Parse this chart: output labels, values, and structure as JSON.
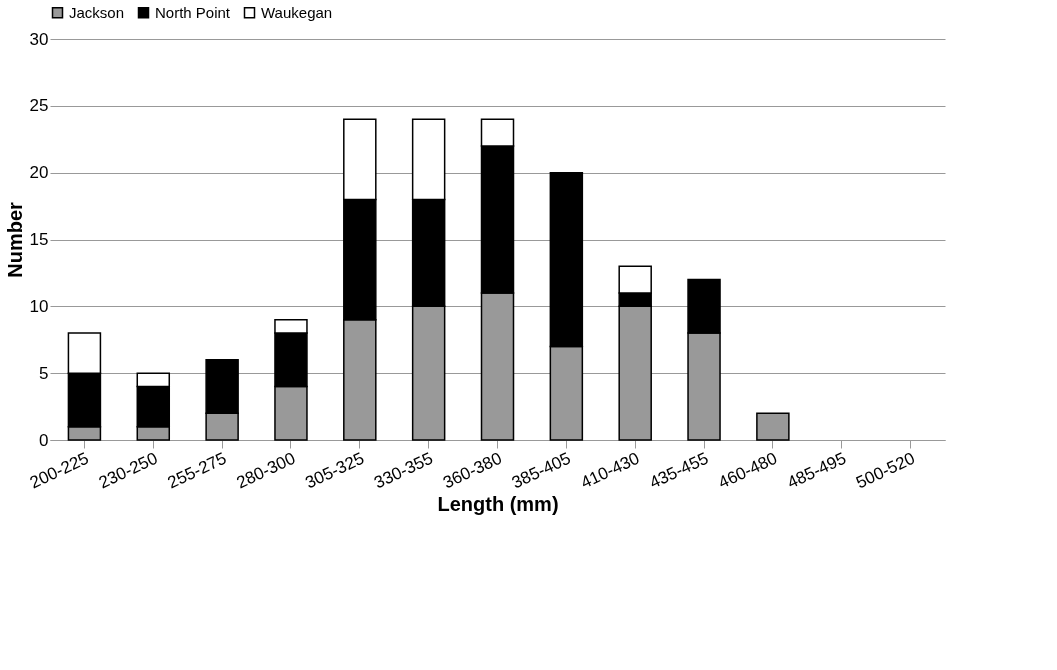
{
  "chart_data": {
    "type": "bar",
    "stacked": true,
    "xlabel": "Length (mm)",
    "ylabel": "Number",
    "categories": [
      "200-225",
      "230-250",
      "255-275",
      "280-300",
      "305-325",
      "330-355",
      "360-380",
      "385-405",
      "410-430",
      "435-455",
      "460-480",
      "485-495",
      "500-520"
    ],
    "series": [
      {
        "name": "Jackson",
        "color": "#999999",
        "values": [
          1,
          1,
          2,
          4,
          9,
          10,
          11,
          7,
          10,
          8,
          2,
          0,
          0
        ]
      },
      {
        "name": "North Point",
        "color": "#000000",
        "values": [
          4,
          3,
          4,
          4,
          9,
          8,
          11,
          13,
          1,
          4,
          0,
          0,
          0
        ]
      },
      {
        "name": "Waukegan",
        "color": "#ffffff",
        "values": [
          3,
          1,
          0,
          1,
          6,
          6,
          2,
          0,
          2,
          0,
          0,
          0,
          0
        ]
      }
    ],
    "ylim": [
      0,
      30
    ],
    "yticks": [
      0,
      5,
      10,
      15,
      20,
      25,
      30
    ],
    "grid": "y",
    "legend": "top"
  }
}
